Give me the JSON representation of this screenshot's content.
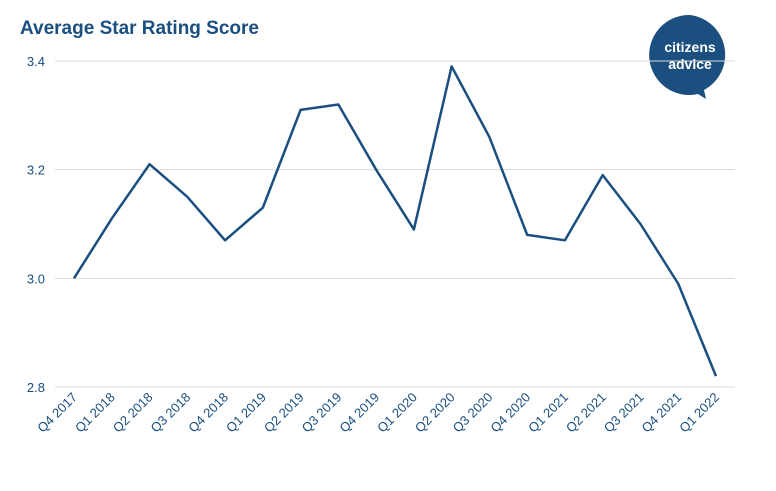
{
  "chart_data": {
    "type": "line",
    "title": "Average Star Rating Score",
    "logo": [
      "citizens",
      "advice"
    ],
    "categories": [
      "Q4 2017",
      "Q1 2018",
      "Q2 2018",
      "Q3 2018",
      "Q4 2018",
      "Q1 2019",
      "Q2 2019",
      "Q3 2019",
      "Q4 2019",
      "Q1 2020",
      "Q2 2020",
      "Q3 2020",
      "Q4 2020",
      "Q1 2021",
      "Q2 2021",
      "Q3 2021",
      "Q4 2021",
      "Q1 2022"
    ],
    "values": [
      3.0,
      3.11,
      3.21,
      3.15,
      3.07,
      3.13,
      3.31,
      3.32,
      3.2,
      3.09,
      3.39,
      3.26,
      3.08,
      3.07,
      3.19,
      3.1,
      2.99,
      2.82
    ],
    "color": "#1a4f80",
    "ylim": [
      2.8,
      3.4
    ],
    "yticks": [
      2.8,
      {
        "value": 3,
        "label": "3.0"
      },
      3.2,
      3.4
    ],
    "grid": true
  }
}
